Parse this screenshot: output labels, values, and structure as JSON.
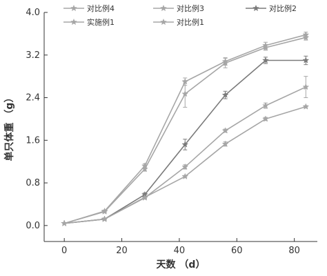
{
  "chart_data": {
    "type": "line",
    "xlabel": "天数 （d）",
    "ylabel": "单只体重 （g）",
    "xlim": [
      -7,
      88
    ],
    "ylim": [
      -0.3,
      4.0
    ],
    "xticks": [
      0,
      20,
      40,
      60,
      80
    ],
    "yticks": [
      0.0,
      0.8,
      1.6,
      2.4,
      3.2,
      4.0
    ],
    "ytick_labels": [
      "0.0",
      "0.8",
      "1.6",
      "2.4",
      "3.2",
      "4.0"
    ],
    "grid": false,
    "legend_position": "top",
    "x": [
      0,
      14,
      28,
      42,
      56,
      70,
      84
    ],
    "series": [
      {
        "name": "对比例4",
        "values": [
          0.04,
          0.27,
          1.12,
          2.7,
          3.08,
          3.38,
          3.58
        ],
        "error": [
          0,
          0.02,
          0.04,
          0.07,
          0.07,
          0.06,
          0.05
        ],
        "color": "#a6a6a6",
        "marker": "star"
      },
      {
        "name": "对比例3",
        "values": [
          0.04,
          0.12,
          0.53,
          0.92,
          1.53,
          2.0,
          2.23
        ],
        "error": [
          0,
          0.01,
          0.02,
          0.02,
          0.04,
          0.03,
          0.02
        ],
        "color": "#a6a6a6",
        "marker": "star"
      },
      {
        "name": "对比例2",
        "values": [
          0.04,
          0.12,
          0.58,
          1.52,
          2.45,
          3.1,
          3.1
        ],
        "error": [
          0,
          0.02,
          0.03,
          0.1,
          0.07,
          0.06,
          0.08
        ],
        "color": "#7a7a7a",
        "marker": "star"
      },
      {
        "name": "实施例1",
        "values": [
          0.04,
          0.26,
          1.06,
          2.47,
          3.05,
          3.34,
          3.53
        ],
        "error": [
          0,
          0.02,
          0.04,
          0.25,
          0.09,
          0.05,
          0.05
        ],
        "color": "#a6a6a6",
        "marker": "star"
      },
      {
        "name": "对比例1",
        "values": [
          0.04,
          0.12,
          0.52,
          1.1,
          1.78,
          2.25,
          2.6
        ],
        "error": [
          0,
          0.01,
          0.02,
          0.04,
          0.03,
          0.05,
          0.2
        ],
        "color": "#a6a6a6",
        "marker": "star"
      }
    ]
  }
}
